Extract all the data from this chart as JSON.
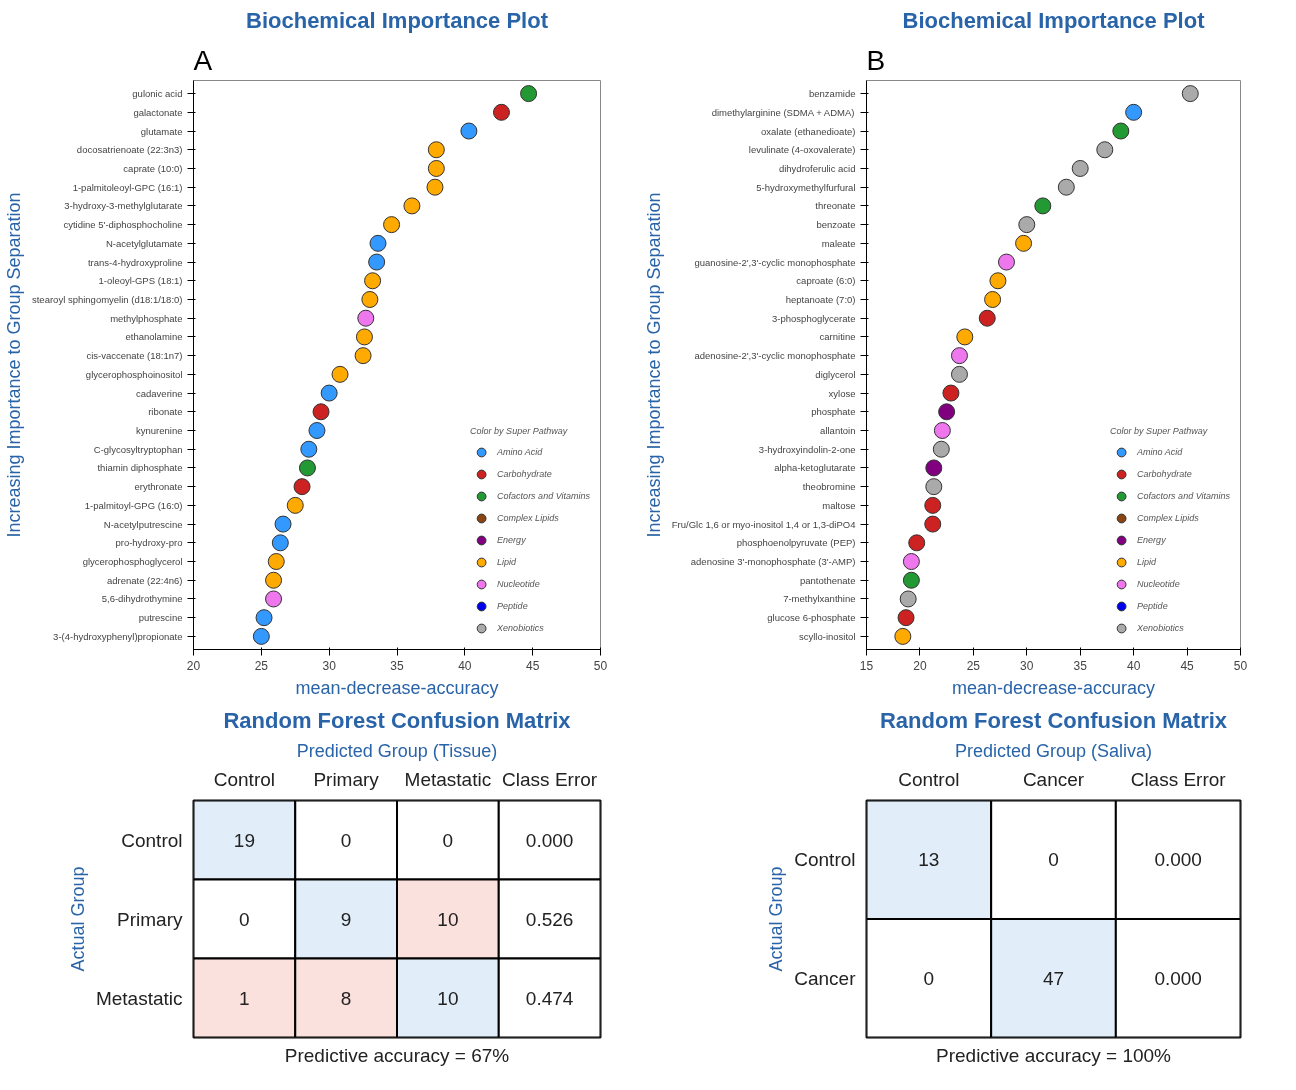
{
  "chart_data": [
    {
      "type": "scatter",
      "title": "Biochemical Importance Plot",
      "xlabel": "mean-decrease-accuracy",
      "ylabel": "Increasing Importance to Group Separation",
      "annotations": [
        "A"
      ],
      "orientation": "horizontal",
      "marker": "circle",
      "legend": "bottom right",
      "legend_title": "Color by Super Pathway",
      "xlim": [
        20,
        50
      ],
      "xticks": [
        20,
        25,
        30,
        35,
        40,
        45,
        50
      ],
      "categories": [
        "gulonic acid",
        "galactonate",
        "glutamate",
        "docosatrienoate (22:3n3)",
        "caprate (10:0)",
        "1-palmitoleoyl-GPC (16:1)",
        "3-hydroxy-3-methylglutarate",
        "cytidine 5'-diphosphocholine",
        "N-acetylglutamate",
        "trans-4-hydroxyproline",
        "1-oleoyl-GPS (18:1)",
        "stearoyl sphingomyelin (d18:1/18:0)",
        "methylphosphate",
        "ethanolamine",
        "cis-vaccenate (18:1n7)",
        "glycerophosphoinositol",
        "cadaverine",
        "ribonate",
        "kynurenine",
        "C-glycosyltryptophan",
        "thiamin diphosphate",
        "erythronate",
        "1-palmitoyl-GPG (16:0)",
        "N-acetylputrescine",
        "pro-hydroxy-pro",
        "glycerophosphoglycerol",
        "adrenate (22:4n6)",
        "5,6-dihydrothymine",
        "putrescine",
        "3-(4-hydroxyphenyl)propionate"
      ],
      "series": [
        {
          "name": "Amino Acid",
          "color": "#3399ff",
          "values": [
            null,
            null,
            40.3,
            null,
            null,
            null,
            null,
            null,
            33.6,
            33.5,
            null,
            null,
            null,
            null,
            null,
            null,
            30.0,
            null,
            29.1,
            28.5,
            null,
            null,
            null,
            26.6,
            26.4,
            null,
            null,
            null,
            25.2,
            25.0
          ]
        },
        {
          "name": "Carbohydrate",
          "color": "#cc2222",
          "values": [
            null,
            42.7,
            null,
            null,
            null,
            null,
            null,
            null,
            null,
            null,
            null,
            null,
            null,
            null,
            null,
            null,
            null,
            29.4,
            null,
            null,
            null,
            28.0,
            null,
            null,
            null,
            null,
            null,
            null,
            null,
            null
          ]
        },
        {
          "name": "Cofactors and Vitamins",
          "color": "#229933",
          "values": [
            44.7,
            null,
            null,
            null,
            null,
            null,
            null,
            null,
            null,
            null,
            null,
            null,
            null,
            null,
            null,
            null,
            null,
            null,
            null,
            null,
            28.4,
            null,
            null,
            null,
            null,
            null,
            null,
            null,
            null,
            null
          ]
        },
        {
          "name": "Complex Lipids",
          "color": "#8b4513",
          "values": [
            null,
            null,
            null,
            null,
            null,
            null,
            null,
            null,
            null,
            null,
            null,
            null,
            null,
            null,
            null,
            null,
            null,
            null,
            null,
            null,
            null,
            null,
            null,
            null,
            null,
            null,
            null,
            null,
            null,
            null
          ]
        },
        {
          "name": "Energy",
          "color": "#800080",
          "values": [
            null,
            null,
            null,
            null,
            null,
            null,
            null,
            null,
            null,
            null,
            null,
            null,
            null,
            null,
            null,
            null,
            null,
            null,
            null,
            null,
            null,
            null,
            null,
            null,
            null,
            null,
            null,
            null,
            null,
            null
          ]
        },
        {
          "name": "Lipid",
          "color": "#ffaa00",
          "values": [
            null,
            null,
            null,
            37.9,
            37.9,
            37.8,
            36.1,
            34.6,
            null,
            null,
            33.2,
            33.0,
            null,
            32.6,
            32.5,
            30.8,
            null,
            null,
            null,
            null,
            null,
            null,
            27.5,
            null,
            null,
            26.1,
            25.9,
            null,
            null,
            null
          ]
        },
        {
          "name": "Nucleotide",
          "color": "#ee77ee",
          "values": [
            null,
            null,
            null,
            null,
            null,
            null,
            null,
            null,
            null,
            null,
            null,
            null,
            32.7,
            null,
            null,
            null,
            null,
            null,
            null,
            null,
            null,
            null,
            null,
            null,
            null,
            null,
            null,
            25.9,
            null,
            null
          ]
        },
        {
          "name": "Peptide",
          "color": "#0000ee",
          "values": [
            null,
            null,
            null,
            null,
            null,
            null,
            null,
            null,
            null,
            null,
            null,
            null,
            null,
            null,
            null,
            null,
            null,
            null,
            null,
            null,
            null,
            null,
            null,
            null,
            null,
            null,
            null,
            null,
            null,
            null
          ]
        },
        {
          "name": "Xenobiotics",
          "color": "#aaaaaa",
          "values": [
            null,
            null,
            null,
            null,
            null,
            null,
            null,
            null,
            null,
            null,
            null,
            null,
            null,
            null,
            null,
            null,
            null,
            null,
            null,
            null,
            null,
            null,
            null,
            null,
            null,
            null,
            null,
            null,
            null,
            null
          ]
        }
      ]
    },
    {
      "type": "heatmap",
      "title": "Random Forest Confusion Matrix",
      "xlabel": "Predicted Group (Tissue)",
      "ylabel": "Actual Group",
      "annotations": [
        "Predictive accuracy = 67%"
      ],
      "categories": [
        "Control",
        "Primary",
        "Metastatic",
        "Class Error"
      ],
      "y_categories": [
        "Control",
        "Primary",
        "Metastatic"
      ],
      "cells": [
        [
          19,
          0,
          0,
          0.0
        ],
        [
          0,
          9,
          10,
          0.526
        ],
        [
          1,
          8,
          10,
          0.474
        ]
      ],
      "cell_labels": [
        [
          "19",
          "0",
          "0",
          "0.000"
        ],
        [
          "0",
          "9",
          "10",
          "0.526"
        ],
        [
          "1",
          "8",
          "10",
          "0.474"
        ]
      ]
    },
    {
      "type": "scatter",
      "title": "Biochemical Importance Plot",
      "xlabel": "mean-decrease-accuracy",
      "ylabel": "Increasing Importance to Group Separation",
      "annotations": [
        "B"
      ],
      "orientation": "horizontal",
      "marker": "circle",
      "legend": "bottom right",
      "legend_title": "Color by Super Pathway",
      "xlim": [
        15,
        50
      ],
      "xticks": [
        15,
        20,
        25,
        30,
        35,
        40,
        45,
        50
      ],
      "categories": [
        "benzamide",
        "dimethylarginine (SDMA + ADMA)",
        "oxalate (ethanedioate)",
        "levulinate (4-oxovalerate)",
        "dihydroferulic acid",
        "5-hydroxymethylfurfural",
        "threonate",
        "benzoate",
        "maleate",
        "guanosine-2',3'-cyclic monophosphate",
        "caproate (6:0)",
        "heptanoate (7:0)",
        "3-phosphoglycerate",
        "carnitine",
        "adenosine-2',3'-cyclic monophosphate",
        "diglycerol",
        "xylose",
        "phosphate",
        "allantoin",
        "3-hydroxyindolin-2-one",
        "alpha-ketoglutarate",
        "theobromine",
        "maltose",
        "Fru/Glc 1,6 or myo-inositol 1,4 or 1,3-diPO4",
        "phosphoenolpyruvate (PEP)",
        "adenosine 3'-monophosphate (3'-AMP)",
        "pantothenate",
        "7-methylxanthine",
        "glucose 6-phosphate",
        "scyllo-inositol"
      ],
      "series": [
        {
          "name": "Amino Acid",
          "color": "#3399ff",
          "values": [
            null,
            40.0,
            null,
            null,
            null,
            null,
            null,
            null,
            null,
            null,
            null,
            null,
            null,
            null,
            null,
            null,
            null,
            null,
            null,
            null,
            null,
            null,
            null,
            null,
            null,
            null,
            null,
            null,
            null,
            null
          ]
        },
        {
          "name": "Carbohydrate",
          "color": "#cc2222",
          "values": [
            null,
            null,
            null,
            null,
            null,
            null,
            null,
            null,
            null,
            null,
            null,
            null,
            26.3,
            null,
            null,
            null,
            22.9,
            null,
            null,
            null,
            null,
            null,
            21.2,
            21.2,
            19.7,
            null,
            null,
            null,
            18.7,
            null
          ]
        },
        {
          "name": "Cofactors and Vitamins",
          "color": "#229933",
          "values": [
            null,
            null,
            38.8,
            null,
            null,
            null,
            31.5,
            null,
            null,
            null,
            null,
            null,
            null,
            null,
            null,
            null,
            null,
            null,
            null,
            null,
            null,
            null,
            null,
            null,
            null,
            null,
            19.2,
            null,
            null,
            null
          ]
        },
        {
          "name": "Complex Lipids",
          "color": "#8b4513",
          "values": [
            null,
            null,
            null,
            null,
            null,
            null,
            null,
            null,
            null,
            null,
            null,
            null,
            null,
            null,
            null,
            null,
            null,
            null,
            null,
            null,
            null,
            null,
            null,
            null,
            null,
            null,
            null,
            null,
            null,
            null
          ]
        },
        {
          "name": "Energy",
          "color": "#800080",
          "values": [
            null,
            null,
            null,
            null,
            null,
            null,
            null,
            null,
            null,
            null,
            null,
            null,
            null,
            null,
            null,
            null,
            null,
            22.5,
            null,
            null,
            21.3,
            null,
            null,
            null,
            null,
            null,
            null,
            null,
            null,
            null
          ]
        },
        {
          "name": "Lipid",
          "color": "#ffaa00",
          "values": [
            null,
            null,
            null,
            null,
            null,
            null,
            null,
            null,
            29.7,
            null,
            27.3,
            26.8,
            null,
            24.2,
            null,
            null,
            null,
            null,
            null,
            null,
            null,
            null,
            null,
            null,
            null,
            null,
            null,
            null,
            null,
            18.4
          ]
        },
        {
          "name": "Nucleotide",
          "color": "#ee77ee",
          "values": [
            null,
            null,
            null,
            null,
            null,
            null,
            null,
            null,
            null,
            28.1,
            null,
            null,
            null,
            null,
            23.7,
            null,
            null,
            null,
            22.1,
            null,
            null,
            null,
            null,
            null,
            null,
            19.2,
            null,
            null,
            null,
            null
          ]
        },
        {
          "name": "Peptide",
          "color": "#0000ee",
          "values": [
            null,
            null,
            null,
            null,
            null,
            null,
            null,
            null,
            null,
            null,
            null,
            null,
            null,
            null,
            null,
            null,
            null,
            null,
            null,
            null,
            null,
            null,
            null,
            null,
            null,
            null,
            null,
            null,
            null,
            null
          ]
        },
        {
          "name": "Xenobiotics",
          "color": "#aaaaaa",
          "values": [
            45.3,
            null,
            null,
            37.3,
            35.0,
            33.7,
            null,
            30.0,
            null,
            null,
            null,
            null,
            null,
            null,
            null,
            23.7,
            null,
            null,
            null,
            22.0,
            null,
            21.3,
            null,
            null,
            null,
            null,
            null,
            18.9,
            null,
            null
          ]
        }
      ]
    },
    {
      "type": "heatmap",
      "title": "Random Forest Confusion Matrix",
      "xlabel": "Predicted Group (Saliva)",
      "ylabel": "Actual Group",
      "annotations": [
        "Predictive accuracy = 100%"
      ],
      "categories": [
        "Control",
        "Cancer",
        "Class Error"
      ],
      "y_categories": [
        "Control",
        "Cancer"
      ],
      "cells": [
        [
          13,
          0,
          0.0
        ],
        [
          0,
          47,
          0.0
        ]
      ],
      "cell_labels": [
        [
          "13",
          "0",
          "0.000"
        ],
        [
          "0",
          "47",
          "0.000"
        ]
      ]
    }
  ]
}
